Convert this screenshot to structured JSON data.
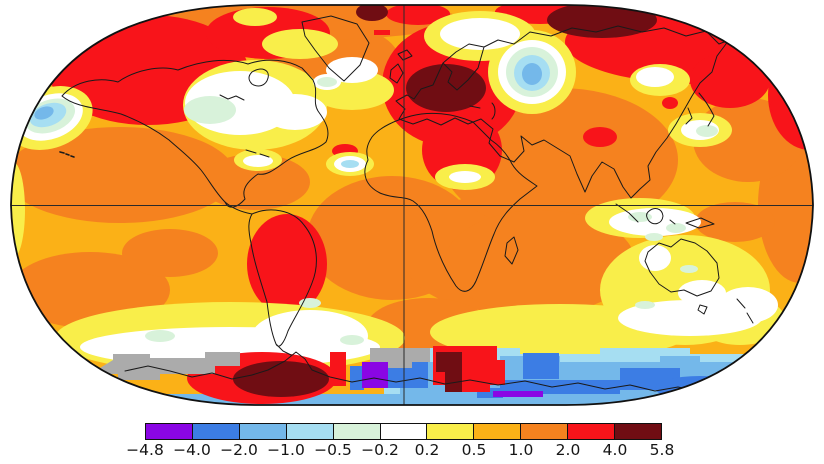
{
  "colorbar": {
    "labels": [
      "−4.8",
      "−4.0",
      "−2.0",
      "−1.0",
      "−0.5",
      "−0.2",
      "0.2",
      "0.5",
      "1.0",
      "2.0",
      "4.0",
      "5.8"
    ],
    "values": [
      -4.8,
      -4.0,
      -2.0,
      -1.0,
      -0.5,
      -0.2,
      0.2,
      0.5,
      1.0,
      2.0,
      4.0,
      5.8
    ],
    "colors": [
      "#8A06E4",
      "#3C7DE4",
      "#74B8EA",
      "#A6DEF2",
      "#D8F2DA",
      "#FFFFFF",
      "#F9EE4A",
      "#FBB117",
      "#F5821F",
      "#F8141A",
      "#700D13"
    ],
    "missing_data_color": "#ABABAB",
    "outline_color": "#111111"
  },
  "map": {
    "outline_color": "#111111",
    "coastline_color": "#1A1A1A",
    "graticule_color": "#2A2A2A",
    "graticule": [
      "equator",
      "central-meridian"
    ]
  },
  "chart_data": {
    "type": "heatmap",
    "subtype": "global_temperature_anomaly_map",
    "projection": "robinson",
    "legend_position": "bottom",
    "colorbar_stops": [
      -4.8,
      -4.0,
      -2.0,
      -1.0,
      -0.5,
      -0.2,
      0.2,
      0.5,
      1.0,
      2.0,
      4.0,
      5.8
    ],
    "colorbar_colors": [
      "#8A06E4",
      "#3C7DE4",
      "#74B8EA",
      "#A6DEF2",
      "#D8F2DA",
      "#FFFFFF",
      "#F9EE4A",
      "#FBB117",
      "#F5821F",
      "#F8141A",
      "#700D13"
    ],
    "missing_data": {
      "color": "#ABABAB",
      "where": "patches over Antarctic interior"
    },
    "regions": [
      {
        "region": "Arctic and northern high latitudes",
        "anomaly": "2.0 to 4.0"
      },
      {
        "region": "Eastern Europe / western Russia",
        "anomaly": "4.0 to 5.8"
      },
      {
        "region": "Northern Siberia",
        "anomaly": "4.0 to 5.8"
      },
      {
        "region": "Alaska / Bering Sea / NE Siberia",
        "anomaly": "2.0 to 4.0"
      },
      {
        "region": "Central and eastern North America",
        "anomaly": "-0.5 to 0.2"
      },
      {
        "region": "Northeast Pacific cool spot",
        "anomaly": "-1.0 to -0.5"
      },
      {
        "region": "Western Siberia (Ob basin) cool spot",
        "anomaly": "-1.0 to -0.5"
      },
      {
        "region": "South-central South America",
        "anomaly": "2.0 to 4.0"
      },
      {
        "region": "Middle East",
        "anomaly": "2.0 to 4.0"
      },
      {
        "region": "Most oceans and mid-latitudes",
        "anomaly": "0.5 to 2.0"
      },
      {
        "region": "Southern Ocean belt",
        "anomaly": "-0.2 to 0.5"
      },
      {
        "region": "East Antarctic coastal seas",
        "anomaly": "-2.0 to -0.5 with -4.8 to -4.0 streaks"
      },
      {
        "region": "West Antarctic sector",
        "anomaly": "2.0 to 5.8"
      },
      {
        "region": "Antarctic interior patches",
        "anomaly": "no data (gray)"
      }
    ]
  }
}
